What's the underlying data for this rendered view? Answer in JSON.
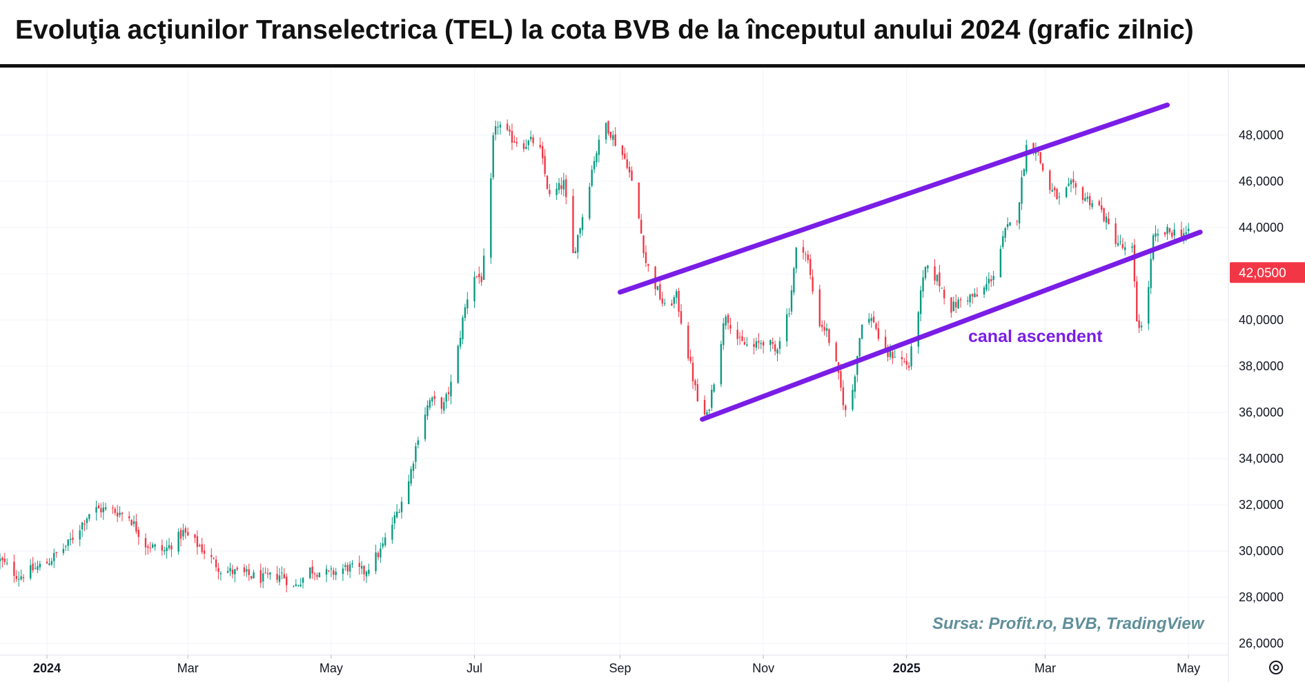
{
  "title": "Evoluţia acţiunilor Transelectrica (TEL) la cota BVB de la începutul anului 2024 (grafic zilnic)",
  "colors": {
    "up": "#089981",
    "down": "#f23645",
    "channel": "#7a1de6",
    "price_label_bg": "#f23645",
    "source": "#5f8f9a"
  },
  "settings_icon": "gear-icon",
  "chart_data": {
    "type": "candlestick",
    "title": "Evoluţia acţiunilor Transelectrica (TEL) la cota BVB de la începutul anului 2024 (grafic zilnic)",
    "x_range": [
      "2023-12-12",
      "2025-05-18"
    ],
    "ylim": [
      25500,
      50500
    ],
    "y_ticks": [
      "26,0000",
      "28,0000",
      "30,0000",
      "32,0000",
      "34,0000",
      "36,0000",
      "38,0000",
      "40,0000",
      "42,0000",
      "44,0000",
      "46,0000",
      "48,0000"
    ],
    "y_tick_values": [
      26000,
      28000,
      30000,
      32000,
      34000,
      36000,
      38000,
      40000,
      42000,
      44000,
      46000,
      48000
    ],
    "x_ticks": [
      {
        "label": "2024",
        "date": "2024-01-01",
        "bold": true
      },
      {
        "label": "Mar",
        "date": "2024-03-01",
        "bold": false
      },
      {
        "label": "May",
        "date": "2024-05-01",
        "bold": false
      },
      {
        "label": "Jul",
        "date": "2024-07-01",
        "bold": false
      },
      {
        "label": "Sep",
        "date": "2024-09-01",
        "bold": false
      },
      {
        "label": "Nov",
        "date": "2024-11-01",
        "bold": false
      },
      {
        "label": "2025",
        "date": "2025-01-01",
        "bold": true
      },
      {
        "label": "Mar",
        "date": "2025-03-01",
        "bold": false
      },
      {
        "label": "May",
        "date": "2025-05-01",
        "bold": false
      }
    ],
    "grid": true,
    "last_price": {
      "label": "42,0500",
      "value": 42050
    },
    "price_path": [
      [
        "2023-12-12",
        29600
      ],
      [
        "2023-12-20",
        28900
      ],
      [
        "2024-01-01",
        29500
      ],
      [
        "2024-01-10",
        30300
      ],
      [
        "2024-01-20",
        31800
      ],
      [
        "2024-01-28",
        31800
      ],
      [
        "2024-02-05",
        31500
      ],
      [
        "2024-02-12",
        30300
      ],
      [
        "2024-02-20",
        30000
      ],
      [
        "2024-02-28",
        30800
      ],
      [
        "2024-03-06",
        30200
      ],
      [
        "2024-03-15",
        29200
      ],
      [
        "2024-03-25",
        29000
      ],
      [
        "2024-04-02",
        28800
      ],
      [
        "2024-04-10",
        29000
      ],
      [
        "2024-04-15",
        28400
      ],
      [
        "2024-04-22",
        29200
      ],
      [
        "2024-04-30",
        29000
      ],
      [
        "2024-05-08",
        29300
      ],
      [
        "2024-05-15",
        29100
      ],
      [
        "2024-05-22",
        30000
      ],
      [
        "2024-05-28",
        31400
      ],
      [
        "2024-06-03",
        33000
      ],
      [
        "2024-06-08",
        35500
      ],
      [
        "2024-06-12",
        36500
      ],
      [
        "2024-06-18",
        36300
      ],
      [
        "2024-06-22",
        37500
      ],
      [
        "2024-06-26",
        40000
      ],
      [
        "2024-06-30",
        42000
      ],
      [
        "2024-07-04",
        41800
      ],
      [
        "2024-07-07",
        44000
      ],
      [
        "2024-07-09",
        47800
      ],
      [
        "2024-07-11",
        48500
      ],
      [
        "2024-07-16",
        47900
      ],
      [
        "2024-07-22",
        47600
      ],
      [
        "2024-07-28",
        47800
      ],
      [
        "2024-08-02",
        45300
      ],
      [
        "2024-08-05",
        45600
      ],
      [
        "2024-08-08",
        45900
      ],
      [
        "2024-08-12",
        42800
      ],
      [
        "2024-08-16",
        44500
      ],
      [
        "2024-08-21",
        47000
      ],
      [
        "2024-08-26",
        48500
      ],
      [
        "2024-08-31",
        47500
      ],
      [
        "2024-09-04",
        46800
      ],
      [
        "2024-09-08",
        45000
      ],
      [
        "2024-09-12",
        42500
      ],
      [
        "2024-09-16",
        41500
      ],
      [
        "2024-09-20",
        40500
      ],
      [
        "2024-09-25",
        41000
      ],
      [
        "2024-09-30",
        38500
      ],
      [
        "2024-10-05",
        36000
      ],
      [
        "2024-10-08",
        35800
      ],
      [
        "2024-10-12",
        38000
      ],
      [
        "2024-10-16",
        40300
      ],
      [
        "2024-10-22",
        39000
      ],
      [
        "2024-10-28",
        38800
      ],
      [
        "2024-11-02",
        39200
      ],
      [
        "2024-11-06",
        38600
      ],
      [
        "2024-11-12",
        40500
      ],
      [
        "2024-11-16",
        43800
      ],
      [
        "2024-11-20",
        42500
      ],
      [
        "2024-11-24",
        40000
      ],
      [
        "2024-11-28",
        39500
      ],
      [
        "2024-12-02",
        38000
      ],
      [
        "2024-12-06",
        36000
      ],
      [
        "2024-12-09",
        37000
      ],
      [
        "2024-12-13",
        40000
      ],
      [
        "2024-12-18",
        40000
      ],
      [
        "2024-12-22",
        38500
      ],
      [
        "2024-12-27",
        38500
      ],
      [
        "2025-01-02",
        38000
      ],
      [
        "2025-01-06",
        40500
      ],
      [
        "2025-01-09",
        42200
      ],
      [
        "2025-01-14",
        41800
      ],
      [
        "2025-01-20",
        40500
      ],
      [
        "2025-01-26",
        41000
      ],
      [
        "2025-02-01",
        41000
      ],
      [
        "2025-02-07",
        42000
      ],
      [
        "2025-02-12",
        43800
      ],
      [
        "2025-02-17",
        44500
      ],
      [
        "2025-02-21",
        47500
      ],
      [
        "2025-02-25",
        47500
      ],
      [
        "2025-03-02",
        45800
      ],
      [
        "2025-03-07",
        45200
      ],
      [
        "2025-03-12",
        45800
      ],
      [
        "2025-03-18",
        45300
      ],
      [
        "2025-03-24",
        44900
      ],
      [
        "2025-03-30",
        43600
      ],
      [
        "2025-04-04",
        43000
      ],
      [
        "2025-04-07",
        43000
      ],
      [
        "2025-04-09",
        40000
      ],
      [
        "2025-04-12",
        39500
      ],
      [
        "2025-04-16",
        43500
      ],
      [
        "2025-04-22",
        43800
      ],
      [
        "2025-04-28",
        43800
      ],
      [
        "2025-05-01",
        43700
      ]
    ],
    "annotations": [
      {
        "type": "line",
        "name": "channel-upper-line",
        "from": {
          "date": "2024-09-01",
          "value": 41200
        },
        "to": {
          "date": "2025-04-22",
          "value": 49300
        }
      },
      {
        "type": "line",
        "name": "channel-lower-line",
        "from": {
          "date": "2024-10-06",
          "value": 35700
        },
        "to": {
          "date": "2025-05-06",
          "value": 43800
        }
      }
    ],
    "annotation_text": "canal ascendent",
    "source_text": "Sursa: Profit.ro, BVB, TradingView"
  }
}
